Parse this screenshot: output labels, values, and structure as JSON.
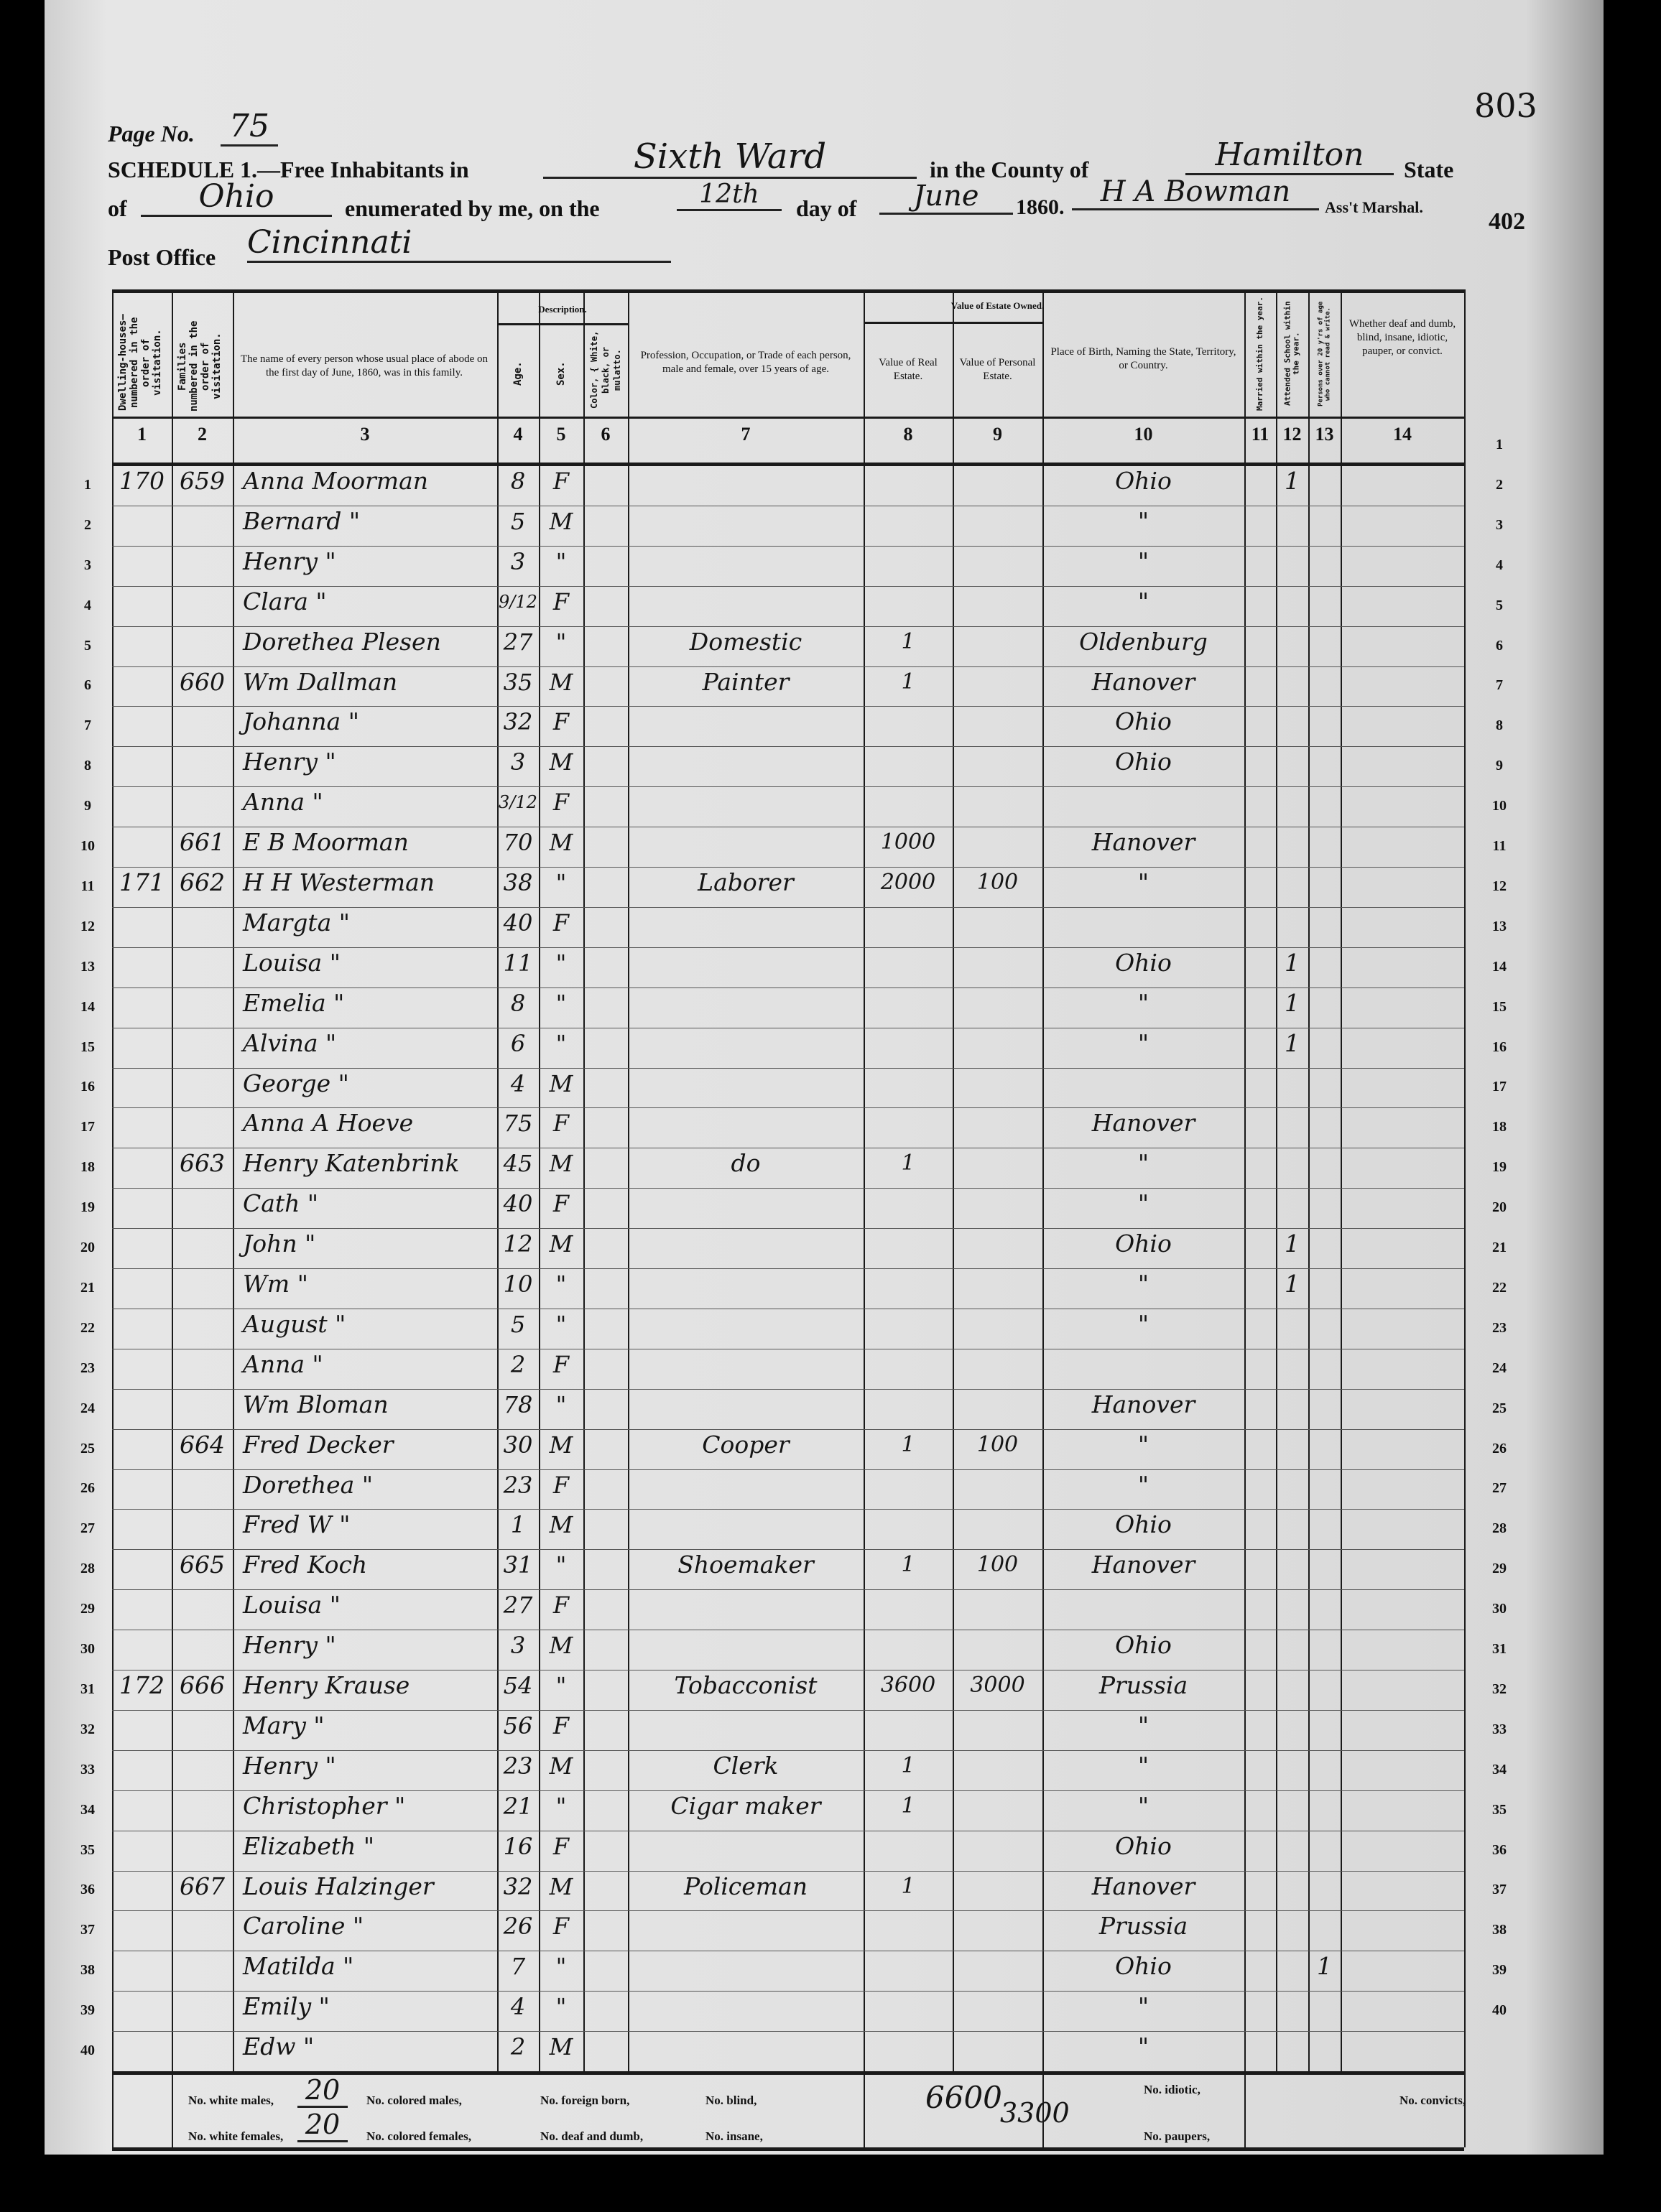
{
  "header": {
    "page_label": "Page No.",
    "page_number": "75",
    "stamp_top": "803",
    "stamp_side": "402",
    "schedule_label": "SCHEDULE 1.—Free Inhabitants in",
    "subdivision": "Sixth Ward",
    "county_label": "in the County of",
    "county": "Hamilton",
    "state_label": "State",
    "of_label": "of",
    "state": "Ohio",
    "enumerated_label": "enumerated by me, on the",
    "day": "12th",
    "day_of_label": "day of",
    "month": "June",
    "year": "1860.",
    "marshal": "H A Bowman",
    "marshal_label": "Ass't Marshal.",
    "post_office_label": "Post Office",
    "post_office": "Cincinnati"
  },
  "column_headers": {
    "description_group": "Description.",
    "estate_group": "Value of Estate Owned.",
    "c1": "Dwelling-houses—numbered in the order of visitation.",
    "c2": "Families numbered in the order of visitation.",
    "c3": "The name of every person whose usual place of abode on the first day of June, 1860, was in this family.",
    "c4": "Age.",
    "c5": "Sex.",
    "c6": "Color, { White, black, or mulatto.",
    "c7": "Profession, Occupation, or Trade of each person, male and female, over 15 years of age.",
    "c8": "Value of Real Estate.",
    "c9": "Value of Personal Estate.",
    "c10": "Place of Birth, Naming the State, Territory, or Country.",
    "c11": "Married within the year.",
    "c12": "Attended School within the year.",
    "c13": "Persons over 20 y'rs of age who cannot read & write.",
    "c14": "Whether deaf and dumb, blind, insane, idiotic, pauper, or convict.",
    "numbers": [
      "1",
      "2",
      "3",
      "4",
      "5",
      "6",
      "7",
      "8",
      "9",
      "10",
      "11",
      "12",
      "13",
      "14"
    ]
  },
  "rows": [
    {
      "line": "1",
      "dwelling": "170",
      "family": "659",
      "name": "Anna Moorman",
      "age": "8",
      "sex": "F",
      "occupation": "",
      "real_estate": "",
      "personal_estate": "",
      "birthplace": "Ohio",
      "married": "",
      "school": "1",
      "illiterate": ""
    },
    {
      "line": "2",
      "dwelling": "",
      "family": "",
      "name": "Bernard \"",
      "age": "5",
      "sex": "M",
      "occupation": "",
      "real_estate": "",
      "personal_estate": "",
      "birthplace": "\"",
      "married": "",
      "school": "",
      "illiterate": ""
    },
    {
      "line": "3",
      "dwelling": "",
      "family": "",
      "name": "Henry \"",
      "age": "3",
      "sex": "\"",
      "occupation": "",
      "real_estate": "",
      "personal_estate": "",
      "birthplace": "\"",
      "married": "",
      "school": "",
      "illiterate": ""
    },
    {
      "line": "4",
      "dwelling": "",
      "family": "",
      "name": "Clara \"",
      "age": "9/12",
      "sex": "F",
      "occupation": "",
      "real_estate": "",
      "personal_estate": "",
      "birthplace": "\"",
      "married": "",
      "school": "",
      "illiterate": ""
    },
    {
      "line": "5",
      "dwelling": "",
      "family": "",
      "name": "Dorethea Plesen",
      "age": "27",
      "sex": "\"",
      "occupation": "Domestic",
      "real_estate": "1",
      "personal_estate": "",
      "birthplace": "Oldenburg",
      "married": "",
      "school": "",
      "illiterate": ""
    },
    {
      "line": "6",
      "dwelling": "",
      "family": "660",
      "name": "Wm Dallman",
      "age": "35",
      "sex": "M",
      "occupation": "Painter",
      "real_estate": "1",
      "personal_estate": "",
      "birthplace": "Hanover",
      "married": "",
      "school": "",
      "illiterate": ""
    },
    {
      "line": "7",
      "dwelling": "",
      "family": "",
      "name": "Johanna \"",
      "age": "32",
      "sex": "F",
      "occupation": "",
      "real_estate": "",
      "personal_estate": "",
      "birthplace": "Ohio",
      "married": "",
      "school": "",
      "illiterate": ""
    },
    {
      "line": "8",
      "dwelling": "",
      "family": "",
      "name": "Henry \"",
      "age": "3",
      "sex": "M",
      "occupation": "",
      "real_estate": "",
      "personal_estate": "",
      "birthplace": "Ohio",
      "married": "",
      "school": "",
      "illiterate": ""
    },
    {
      "line": "9",
      "dwelling": "",
      "family": "",
      "name": "Anna \"",
      "age": "3/12",
      "sex": "F",
      "occupation": "",
      "real_estate": "",
      "personal_estate": "",
      "birthplace": "",
      "married": "",
      "school": "",
      "illiterate": ""
    },
    {
      "line": "10",
      "dwelling": "",
      "family": "661",
      "name": "E B Moorman",
      "age": "70",
      "sex": "M",
      "occupation": "",
      "real_estate": "1000",
      "personal_estate": "",
      "birthplace": "Hanover",
      "married": "",
      "school": "",
      "illiterate": ""
    },
    {
      "line": "11",
      "dwelling": "171",
      "family": "662",
      "name": "H H Westerman",
      "age": "38",
      "sex": "\"",
      "occupation": "Laborer",
      "real_estate": "2000",
      "personal_estate": "100",
      "birthplace": "\"",
      "married": "",
      "school": "",
      "illiterate": ""
    },
    {
      "line": "12",
      "dwelling": "",
      "family": "",
      "name": "Margta \"",
      "age": "40",
      "sex": "F",
      "occupation": "",
      "real_estate": "",
      "personal_estate": "",
      "birthplace": "",
      "married": "",
      "school": "",
      "illiterate": ""
    },
    {
      "line": "13",
      "dwelling": "",
      "family": "",
      "name": "Louisa \"",
      "age": "11",
      "sex": "\"",
      "occupation": "",
      "real_estate": "",
      "personal_estate": "",
      "birthplace": "Ohio",
      "married": "",
      "school": "1",
      "illiterate": ""
    },
    {
      "line": "14",
      "dwelling": "",
      "family": "",
      "name": "Emelia \"",
      "age": "8",
      "sex": "\"",
      "occupation": "",
      "real_estate": "",
      "personal_estate": "",
      "birthplace": "\"",
      "married": "",
      "school": "1",
      "illiterate": ""
    },
    {
      "line": "15",
      "dwelling": "",
      "family": "",
      "name": "Alvina \"",
      "age": "6",
      "sex": "\"",
      "occupation": "",
      "real_estate": "",
      "personal_estate": "",
      "birthplace": "\"",
      "married": "",
      "school": "1",
      "illiterate": ""
    },
    {
      "line": "16",
      "dwelling": "",
      "family": "",
      "name": "George \"",
      "age": "4",
      "sex": "M",
      "occupation": "",
      "real_estate": "",
      "personal_estate": "",
      "birthplace": "",
      "married": "",
      "school": "",
      "illiterate": ""
    },
    {
      "line": "17",
      "dwelling": "",
      "family": "",
      "name": "Anna A Hoeve",
      "age": "75",
      "sex": "F",
      "occupation": "",
      "real_estate": "",
      "personal_estate": "",
      "birthplace": "Hanover",
      "married": "",
      "school": "",
      "illiterate": ""
    },
    {
      "line": "18",
      "dwelling": "",
      "family": "663",
      "name": "Henry Katenbrink",
      "age": "45",
      "sex": "M",
      "occupation": "do",
      "real_estate": "1",
      "personal_estate": "",
      "birthplace": "\"",
      "married": "",
      "school": "",
      "illiterate": ""
    },
    {
      "line": "19",
      "dwelling": "",
      "family": "",
      "name": "Cath \"",
      "age": "40",
      "sex": "F",
      "occupation": "",
      "real_estate": "",
      "personal_estate": "",
      "birthplace": "\"",
      "married": "",
      "school": "",
      "illiterate": ""
    },
    {
      "line": "20",
      "dwelling": "",
      "family": "",
      "name": "John \"",
      "age": "12",
      "sex": "M",
      "occupation": "",
      "real_estate": "",
      "personal_estate": "",
      "birthplace": "Ohio",
      "married": "",
      "school": "1",
      "illiterate": ""
    },
    {
      "line": "21",
      "dwelling": "",
      "family": "",
      "name": "Wm \"",
      "age": "10",
      "sex": "\"",
      "occupation": "",
      "real_estate": "",
      "personal_estate": "",
      "birthplace": "\"",
      "married": "",
      "school": "1",
      "illiterate": ""
    },
    {
      "line": "22",
      "dwelling": "",
      "family": "",
      "name": "August \"",
      "age": "5",
      "sex": "\"",
      "occupation": "",
      "real_estate": "",
      "personal_estate": "",
      "birthplace": "\"",
      "married": "",
      "school": "",
      "illiterate": ""
    },
    {
      "line": "23",
      "dwelling": "",
      "family": "",
      "name": "Anna \"",
      "age": "2",
      "sex": "F",
      "occupation": "",
      "real_estate": "",
      "personal_estate": "",
      "birthplace": "",
      "married": "",
      "school": "",
      "illiterate": ""
    },
    {
      "line": "24",
      "dwelling": "",
      "family": "",
      "name": "Wm Bloman",
      "age": "78",
      "sex": "\"",
      "occupation": "",
      "real_estate": "",
      "personal_estate": "",
      "birthplace": "Hanover",
      "married": "",
      "school": "",
      "illiterate": ""
    },
    {
      "line": "25",
      "dwelling": "",
      "family": "664",
      "name": "Fred Decker",
      "age": "30",
      "sex": "M",
      "occupation": "Cooper",
      "real_estate": "1",
      "personal_estate": "100",
      "birthplace": "\"",
      "married": "",
      "school": "",
      "illiterate": ""
    },
    {
      "line": "26",
      "dwelling": "",
      "family": "",
      "name": "Dorethea \"",
      "age": "23",
      "sex": "F",
      "occupation": "",
      "real_estate": "",
      "personal_estate": "",
      "birthplace": "\"",
      "married": "",
      "school": "",
      "illiterate": ""
    },
    {
      "line": "27",
      "dwelling": "",
      "family": "",
      "name": "Fred W \"",
      "age": "1",
      "sex": "M",
      "occupation": "",
      "real_estate": "",
      "personal_estate": "",
      "birthplace": "Ohio",
      "married": "",
      "school": "",
      "illiterate": ""
    },
    {
      "line": "28",
      "dwelling": "",
      "family": "665",
      "name": "Fred Koch",
      "age": "31",
      "sex": "\"",
      "occupation": "Shoemaker",
      "real_estate": "1",
      "personal_estate": "100",
      "birthplace": "Hanover",
      "married": "",
      "school": "",
      "illiterate": ""
    },
    {
      "line": "29",
      "dwelling": "",
      "family": "",
      "name": "Louisa \"",
      "age": "27",
      "sex": "F",
      "occupation": "",
      "real_estate": "",
      "personal_estate": "",
      "birthplace": "",
      "married": "",
      "school": "",
      "illiterate": ""
    },
    {
      "line": "30",
      "dwelling": "",
      "family": "",
      "name": "Henry \"",
      "age": "3",
      "sex": "M",
      "occupation": "",
      "real_estate": "",
      "personal_estate": "",
      "birthplace": "Ohio",
      "married": "",
      "school": "",
      "illiterate": ""
    },
    {
      "line": "31",
      "dwelling": "172",
      "family": "666",
      "name": "Henry Krause",
      "age": "54",
      "sex": "\"",
      "occupation": "Tobacconist",
      "real_estate": "3600",
      "personal_estate": "3000",
      "birthplace": "Prussia",
      "married": "",
      "school": "",
      "illiterate": ""
    },
    {
      "line": "32",
      "dwelling": "",
      "family": "",
      "name": "Mary \"",
      "age": "56",
      "sex": "F",
      "occupation": "",
      "real_estate": "",
      "personal_estate": "",
      "birthplace": "\"",
      "married": "",
      "school": "",
      "illiterate": ""
    },
    {
      "line": "33",
      "dwelling": "",
      "family": "",
      "name": "Henry \"",
      "age": "23",
      "sex": "M",
      "occupation": "Clerk",
      "real_estate": "1",
      "personal_estate": "",
      "birthplace": "\"",
      "married": "",
      "school": "",
      "illiterate": ""
    },
    {
      "line": "34",
      "dwelling": "",
      "family": "",
      "name": "Christopher \"",
      "age": "21",
      "sex": "\"",
      "occupation": "Cigar maker",
      "real_estate": "1",
      "personal_estate": "",
      "birthplace": "\"",
      "married": "",
      "school": "",
      "illiterate": ""
    },
    {
      "line": "35",
      "dwelling": "",
      "family": "",
      "name": "Elizabeth \"",
      "age": "16",
      "sex": "F",
      "occupation": "",
      "real_estate": "",
      "personal_estate": "",
      "birthplace": "Ohio",
      "married": "",
      "school": "",
      "illiterate": ""
    },
    {
      "line": "36",
      "dwelling": "",
      "family": "667",
      "name": "Louis Halzinger",
      "age": "32",
      "sex": "M",
      "occupation": "Policeman",
      "real_estate": "1",
      "personal_estate": "",
      "birthplace": "Hanover",
      "married": "",
      "school": "",
      "illiterate": ""
    },
    {
      "line": "37",
      "dwelling": "",
      "family": "",
      "name": "Caroline \"",
      "age": "26",
      "sex": "F",
      "occupation": "",
      "real_estate": "",
      "personal_estate": "",
      "birthplace": "Prussia",
      "married": "",
      "school": "",
      "illiterate": ""
    },
    {
      "line": "38",
      "dwelling": "",
      "family": "",
      "name": "Matilda \"",
      "age": "7",
      "sex": "\"",
      "occupation": "",
      "real_estate": "",
      "personal_estate": "",
      "birthplace": "Ohio",
      "married": "",
      "school": "",
      "illiterate": "1"
    },
    {
      "line": "39",
      "dwelling": "",
      "family": "",
      "name": "Emily \"",
      "age": "4",
      "sex": "\"",
      "occupation": "",
      "real_estate": "",
      "personal_estate": "",
      "birthplace": "\"",
      "married": "",
      "school": "",
      "illiterate": ""
    },
    {
      "line": "40",
      "dwelling": "",
      "family": "",
      "name": "Edw \"",
      "age": "2",
      "sex": "M",
      "occupation": "",
      "real_estate": "",
      "personal_estate": "",
      "birthplace": "\"",
      "married": "",
      "school": "",
      "illiterate": ""
    }
  ],
  "right_margin_numbers": [
    "1",
    "2",
    "3",
    "4",
    "5",
    "6",
    "7",
    "8",
    "9",
    "10",
    "11",
    "12",
    "13",
    "14",
    "15",
    "16",
    "17",
    "18",
    "19",
    "20",
    "21",
    "22",
    "23",
    "24",
    "25",
    "26",
    "27",
    "28",
    "29",
    "30",
    "31",
    "32",
    "33",
    "34",
    "35",
    "36",
    "37",
    "38",
    "39",
    "40"
  ],
  "footer": {
    "white_males_label": "No. white males,",
    "white_males": "20",
    "white_females_label": "No. white females,",
    "white_females": "20",
    "colored_males_label": "No. colored males,",
    "colored_females_label": "No. colored females,",
    "foreign_born_label": "No. foreign born,",
    "deaf_dumb_label": "No. deaf and dumb,",
    "blind_label": "No. blind,",
    "insane_label": "No. insane,",
    "real_estate_total": "6600",
    "personal_estate_total": "3300",
    "idiotic_label": "No. idiotic,",
    "paupers_label": "No. paupers,",
    "convicts_label": "No. convicts,"
  }
}
